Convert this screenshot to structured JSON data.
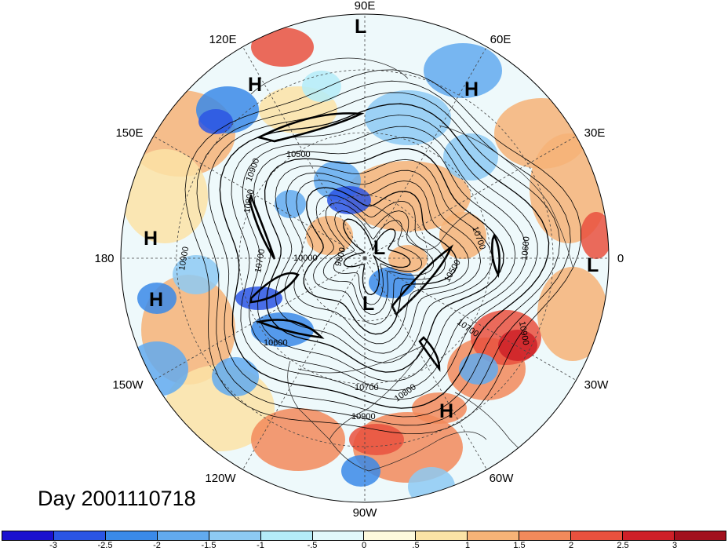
{
  "map": {
    "projection": "north-polar-stereographic",
    "longitude_labels": [
      "90E",
      "60E",
      "30E",
      "0",
      "30W",
      "60W",
      "90W",
      "120W",
      "150W",
      "180",
      "150E",
      "120E"
    ],
    "contour_labels": [
      "10500",
      "10900",
      "10800",
      "10700",
      "10600",
      "10000",
      "9800",
      "10700",
      "10500",
      "10900",
      "10700",
      "10600",
      "10700",
      "10800",
      "10900",
      "10900"
    ],
    "pressure_centers": [
      "L",
      "H",
      "H",
      "H",
      "H",
      "L",
      "L",
      "L",
      "H"
    ]
  },
  "date_label": "Day 2001110718",
  "colorbar": {
    "colors": [
      "#1a10cf",
      "#2a55e4",
      "#3a8ae8",
      "#62aaee",
      "#8dcaf3",
      "#b4ecf8",
      "#e2f8fb",
      "#fdf9dd",
      "#fbe3a6",
      "#f6b377",
      "#f28a5b",
      "#e9513e",
      "#ce2028",
      "#a2101d"
    ],
    "tick_labels": [
      "-3",
      "-2.5",
      "-2",
      "-1.5",
      "-1",
      "-.5",
      "0",
      ".5",
      "1",
      "1.5",
      "2",
      "2.5",
      "3"
    ]
  }
}
